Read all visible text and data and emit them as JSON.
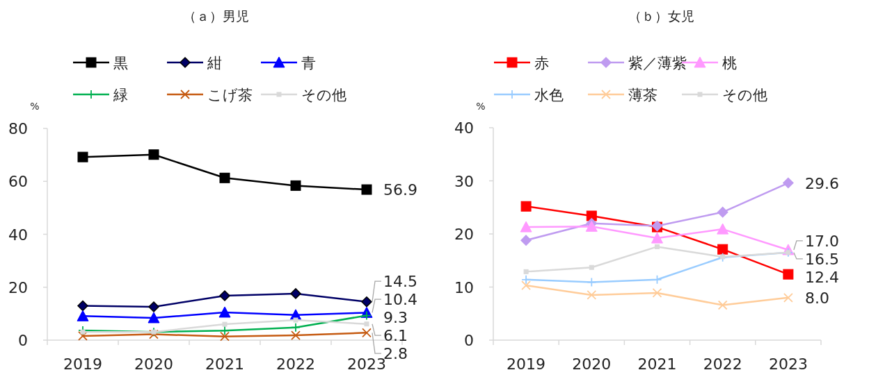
{
  "chart_data": [
    {
      "type": "line",
      "title": "（ａ）男児",
      "ylabel": "%",
      "categories": [
        "2019",
        "2020",
        "2021",
        "2022",
        "2023"
      ],
      "ylim": [
        0,
        80
      ],
      "yticks": [
        0,
        20,
        40,
        60,
        80
      ],
      "legend": "top",
      "series": [
        {
          "name": "黒",
          "color": "#000000",
          "marker": "square",
          "values": [
            69.2,
            70.1,
            61.3,
            58.4,
            56.9
          ],
          "value_labels": [
            null,
            null,
            null,
            null,
            "56.9"
          ]
        },
        {
          "name": "紺",
          "color": "#000066",
          "marker": "diamond",
          "values": [
            13.0,
            12.6,
            16.8,
            17.6,
            14.5
          ],
          "value_labels": [
            null,
            null,
            null,
            null,
            "14.5"
          ]
        },
        {
          "name": "青",
          "color": "#0000ff",
          "marker": "triangle",
          "values": [
            9.1,
            8.4,
            10.5,
            9.5,
            10.4
          ],
          "value_labels": [
            null,
            null,
            null,
            null,
            "10.4"
          ]
        },
        {
          "name": "緑",
          "color": "#00b050",
          "marker": "plus",
          "values": [
            3.7,
            3.1,
            3.6,
            4.8,
            9.3
          ],
          "value_labels": [
            null,
            null,
            null,
            null,
            "9.3"
          ]
        },
        {
          "name": "こげ茶",
          "color": "#c55a11",
          "marker": "cross",
          "values": [
            1.6,
            2.2,
            1.4,
            1.8,
            2.8
          ],
          "value_labels": [
            null,
            null,
            null,
            null,
            "2.8"
          ]
        },
        {
          "name": "その他",
          "color": "#d9d9d9",
          "marker": "square",
          "values": [
            3.1,
            3.1,
            6.0,
            7.6,
            6.1
          ],
          "value_labels": [
            null,
            null,
            null,
            null,
            "6.1"
          ]
        }
      ]
    },
    {
      "type": "line",
      "title": "（ｂ）女児",
      "ylabel": "%",
      "categories": [
        "2019",
        "2020",
        "2021",
        "2022",
        "2023"
      ],
      "ylim": [
        0,
        40
      ],
      "yticks": [
        0,
        10,
        20,
        30,
        40
      ],
      "legend": "top",
      "series": [
        {
          "name": "赤",
          "color": "#ff0000",
          "marker": "square",
          "values": [
            25.2,
            23.4,
            21.3,
            17.1,
            12.4
          ],
          "value_labels": [
            null,
            null,
            null,
            null,
            "12.4"
          ]
        },
        {
          "name": "紫／薄紫",
          "color": "#bf9bf0",
          "marker": "diamond",
          "values": [
            18.8,
            22.0,
            21.5,
            24.1,
            29.6
          ],
          "value_labels": [
            null,
            null,
            null,
            null,
            "29.6"
          ]
        },
        {
          "name": "桃",
          "color": "#ff99ff",
          "marker": "triangle",
          "values": [
            21.3,
            21.4,
            19.2,
            20.9,
            17.0
          ],
          "value_labels": [
            null,
            null,
            null,
            null,
            "17.0"
          ]
        },
        {
          "name": "水色",
          "color": "#99ccff",
          "marker": "plus",
          "values": [
            11.4,
            10.9,
            11.4,
            15.6,
            16.5
          ],
          "value_labels": [
            null,
            null,
            null,
            null,
            "16.5"
          ]
        },
        {
          "name": "薄茶",
          "color": "#ffcc99",
          "marker": "cross",
          "values": [
            10.3,
            8.5,
            8.9,
            6.6,
            8.0
          ],
          "value_labels": [
            null,
            null,
            null,
            null,
            "8.0"
          ]
        },
        {
          "name": "その他",
          "color": "#d9d9d9",
          "marker": "square",
          "values": [
            12.9,
            13.7,
            17.6,
            15.7,
            16.5
          ]
        }
      ]
    }
  ]
}
